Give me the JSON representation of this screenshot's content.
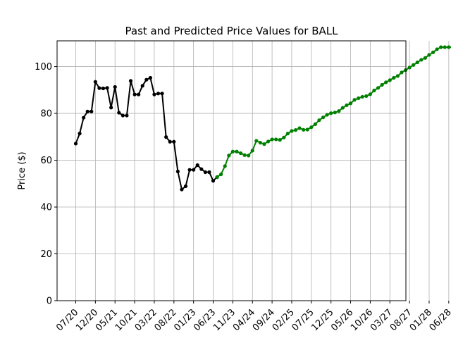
{
  "chart_data": {
    "type": "line",
    "title": "Past and Predicted Price Values for BALL",
    "xlabel": "",
    "ylabel": "Price ($)",
    "ylim": [
      0,
      111
    ],
    "yticks": [
      0,
      20,
      40,
      60,
      80,
      100
    ],
    "xticks": [
      "07/20",
      "12/20",
      "05/21",
      "10/21",
      "03/22",
      "08/22",
      "01/23",
      "06/23",
      "11/23",
      "04/24",
      "09/24",
      "02/25",
      "07/25",
      "12/25",
      "05/26",
      "10/26",
      "03/27",
      "08/27",
      "01/28",
      "06/28"
    ],
    "grid": true,
    "series": [
      {
        "color": "#000000",
        "x": [
          0,
          1,
          2,
          3,
          4,
          5,
          6,
          7,
          8,
          9,
          10,
          11,
          12,
          13,
          14,
          15,
          16,
          17,
          18,
          19,
          20,
          21,
          22,
          23,
          24,
          25,
          26,
          27,
          28,
          29,
          30,
          31,
          32,
          33,
          34,
          35,
          36
        ],
        "values": [
          67.1,
          71.4,
          78.2,
          80.8,
          80.8,
          93.5,
          90.8,
          90.7,
          90.9,
          82.5,
          91.3,
          80.3,
          79.1,
          79.1,
          93.9,
          88.1,
          88.1,
          91.8,
          94.4,
          95.2,
          88.1,
          88.5,
          88.5,
          69.9,
          67.9,
          67.9,
          55.2,
          47.5,
          48.9,
          55.9,
          55.9,
          57.9,
          56.2,
          54.9,
          54.9,
          51.2,
          52.8
        ]
      },
      {
        "color": "#008000",
        "x": [
          36,
          37,
          38,
          39,
          40,
          41,
          42,
          43,
          44,
          45,
          46,
          47,
          48,
          49,
          50,
          51,
          52,
          53,
          54,
          55,
          56,
          57,
          58,
          59,
          60,
          61,
          62,
          63,
          64,
          65,
          66,
          67,
          68,
          69,
          70,
          71,
          72,
          73,
          74,
          75,
          76,
          77,
          78,
          79,
          80,
          81,
          82,
          83,
          84,
          85,
          86,
          87,
          88,
          89,
          90,
          91,
          92,
          93,
          94,
          95,
          96
        ],
        "values": [
          52.8,
          54.0,
          57.5,
          62.0,
          63.7,
          63.7,
          63.0,
          62.2,
          62.0,
          64.1,
          68.3,
          67.5,
          66.9,
          68.0,
          68.9,
          68.9,
          68.7,
          69.7,
          71.4,
          72.5,
          72.9,
          73.7,
          73.0,
          73.1,
          74.1,
          75.4,
          77.1,
          78.3,
          79.4,
          80.1,
          80.4,
          81.0,
          82.4,
          83.5,
          84.3,
          85.8,
          86.5,
          87.1,
          87.4,
          88.2,
          89.8,
          90.9,
          92.2,
          93.3,
          94.2,
          95.2,
          96.0,
          97.5,
          98.5,
          99.6,
          100.7,
          101.8,
          102.9,
          103.7,
          105.0,
          106.1,
          107.4,
          108.3,
          108.3,
          108.3,
          108.3
        ]
      }
    ]
  }
}
